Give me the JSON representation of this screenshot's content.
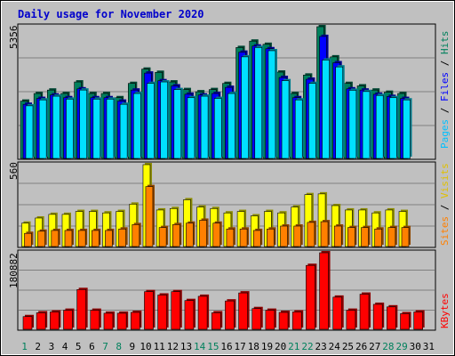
{
  "title": "Daily usage for November 2020",
  "colors": {
    "background": "#c0c0c0",
    "panel": "#c0c0c0",
    "grid": "#808080",
    "hits": "#00805c",
    "files": "#0000ff",
    "pages": "#00e0ff",
    "visits": "#ffff00",
    "sites": "#ff8000",
    "kbytes": "#ff0000"
  },
  "legends": {
    "top": [
      {
        "text": "Pages",
        "color": "#00c0ff"
      },
      {
        "text": " / ",
        "color": "#000000"
      },
      {
        "text": "Files",
        "color": "#0000ff"
      },
      {
        "text": " / ",
        "color": "#000000"
      },
      {
        "text": "Hits",
        "color": "#00805c"
      }
    ],
    "middle": [
      {
        "text": "Sites",
        "color": "#ff8000"
      },
      {
        "text": " / ",
        "color": "#000000"
      },
      {
        "text": "Visits",
        "color": "#e0c000"
      }
    ],
    "bottom": [
      {
        "text": "KBytes",
        "color": "#ff0000"
      }
    ]
  },
  "chart_data": {
    "type": "bar",
    "x": [
      1,
      2,
      3,
      4,
      5,
      6,
      7,
      8,
      9,
      10,
      11,
      12,
      13,
      14,
      15,
      16,
      17,
      18,
      19,
      20,
      21,
      22,
      23,
      24,
      25,
      26,
      27,
      28,
      29,
      30,
      31
    ],
    "weekend_days": [
      1,
      7,
      8,
      14,
      15,
      21,
      22,
      28,
      29
    ],
    "panels": [
      {
        "name": "top",
        "max_label": "5356",
        "ylim": [
          0,
          5356
        ],
        "series": [
          {
            "name": "Hits",
            "values": [
              2330,
              2640,
              2780,
              2640,
              3110,
              2640,
              2640,
              2470,
              3050,
              3630,
              3500,
              3110,
              2800,
              2710,
              2800,
              3050,
              4510,
              4770,
              4640,
              3510,
              2640,
              3390,
              5356,
              4130,
              3050,
              2950,
              2780,
              2690,
              2640,
              null,
              null
            ]
          },
          {
            "name": "Files",
            "values": [
              2200,
              2440,
              2580,
              2470,
              2830,
              2470,
              2470,
              2330,
              2780,
              3470,
              3160,
              2950,
              2610,
              2580,
              2640,
              2890,
              4320,
              4570,
              4460,
              3290,
              2470,
              3220,
              4960,
              3890,
              2830,
              2780,
              2610,
              2520,
              2440,
              null,
              null
            ]
          },
          {
            "name": "Pages",
            "values": [
              2140,
              2380,
              2530,
              2410,
              2780,
              2410,
              2410,
              2200,
              2640,
              3050,
              3110,
              2800,
              2470,
              2530,
              2440,
              2640,
              4130,
              4510,
              4380,
              3160,
              2380,
              3050,
              4000,
              3720,
              2770,
              2720,
              2560,
              2470,
              2380,
              null,
              null
            ]
          }
        ]
      },
      {
        "name": "middle",
        "max_label": "560",
        "ylim": [
          0,
          560
        ],
        "series": [
          {
            "name": "Visits",
            "values": [
              160,
              195,
              220,
              220,
              240,
              240,
              230,
              240,
              290,
              560,
              250,
              260,
              320,
              270,
              260,
              230,
              240,
              210,
              240,
              230,
              270,
              355,
              360,
              280,
              250,
              250,
              230,
              250,
              240,
              null,
              null
            ]
          },
          {
            "name": "Sites",
            "values": [
              90,
              105,
              110,
              110,
              110,
              110,
              110,
              120,
              150,
              410,
              130,
              150,
              160,
              180,
              160,
              120,
              120,
              110,
              120,
              140,
              140,
              165,
              170,
              140,
              130,
              130,
              120,
              130,
              130,
              null,
              null
            ]
          }
        ]
      },
      {
        "name": "bottom",
        "max_label": "180882",
        "ylim": [
          0,
          180882
        ],
        "series": [
          {
            "name": "KBytes",
            "values": [
              30000,
              39000,
              41000,
              45000,
              94000,
              45000,
              38000,
              38000,
              40000,
              89000,
              81000,
              89000,
              68000,
              78000,
              39000,
              67000,
              86000,
              49000,
              45000,
              40000,
              41000,
              151000,
              180882,
              76000,
              45000,
              83000,
              59000,
              53000,
              37000,
              41000,
              null
            ]
          }
        ]
      }
    ]
  }
}
